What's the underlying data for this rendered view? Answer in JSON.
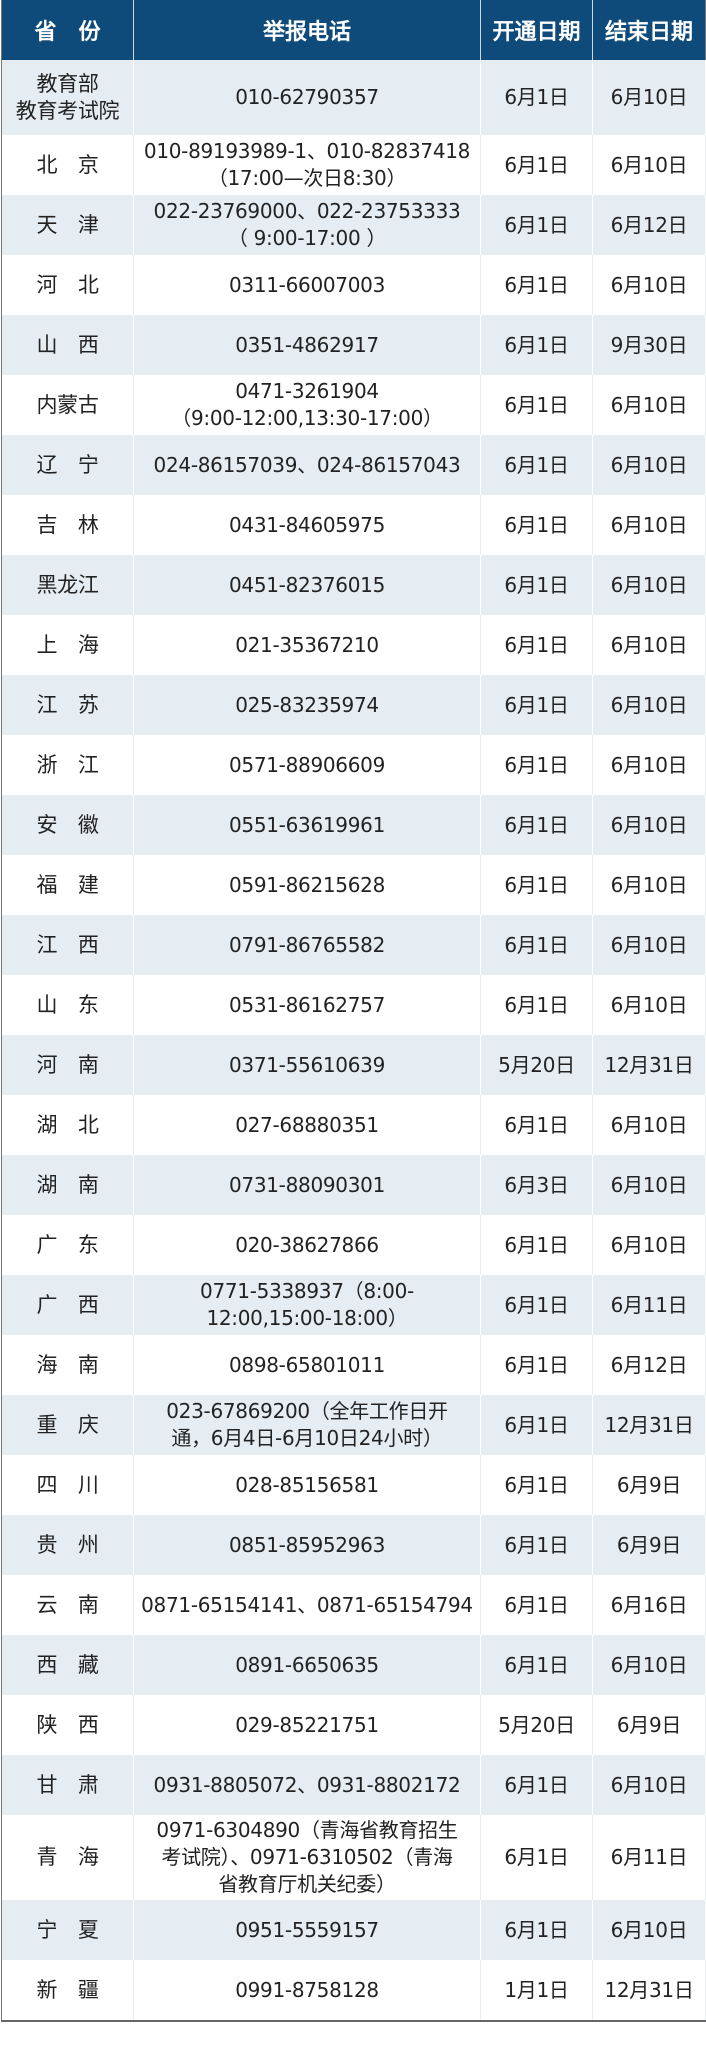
{
  "header": {
    "province": "省　份",
    "phone": "举报电话",
    "start": "开通日期",
    "end": "结束日期"
  },
  "colors": {
    "header_bg": "#0e4b7b",
    "row_shade": "#e5edf3"
  },
  "rows": [
    {
      "province": "教育部\n教育考试院",
      "phone": "010-62790357",
      "start": "6月1日",
      "end": "6月10日"
    },
    {
      "province": "北　京",
      "phone": "010-89193989-1、010-82837418\n（17:00—次日8:30）",
      "start": "6月1日",
      "end": "6月10日"
    },
    {
      "province": "天　津",
      "phone": "022-23769000、022-23753333\n（ 9:00-17:00 ）",
      "start": "6月1日",
      "end": "6月12日"
    },
    {
      "province": "河　北",
      "phone": "0311-66007003",
      "start": "6月1日",
      "end": "6月10日"
    },
    {
      "province": "山　西",
      "phone": "0351-4862917",
      "start": "6月1日",
      "end": "9月30日"
    },
    {
      "province": "内蒙古",
      "phone": "0471-3261904\n（9:00-12:00,13:30-17:00）",
      "start": "6月1日",
      "end": "6月10日"
    },
    {
      "province": "辽　宁",
      "phone": "024-86157039、024-86157043",
      "start": "6月1日",
      "end": "6月10日"
    },
    {
      "province": "吉　林",
      "phone": "0431-84605975",
      "start": "6月1日",
      "end": "6月10日"
    },
    {
      "province": "黑龙江",
      "phone": "0451-82376015",
      "start": "6月1日",
      "end": "6月10日"
    },
    {
      "province": "上　海",
      "phone": "021-35367210",
      "start": "6月1日",
      "end": "6月10日"
    },
    {
      "province": "江　苏",
      "phone": "025-83235974",
      "start": "6月1日",
      "end": "6月10日"
    },
    {
      "province": "浙　江",
      "phone": "0571-88906609",
      "start": "6月1日",
      "end": "6月10日"
    },
    {
      "province": "安　徽",
      "phone": "0551-63619961",
      "start": "6月1日",
      "end": "6月10日"
    },
    {
      "province": "福　建",
      "phone": "0591-86215628",
      "start": "6月1日",
      "end": "6月10日"
    },
    {
      "province": "江　西",
      "phone": "0791-86765582",
      "start": "6月1日",
      "end": "6月10日"
    },
    {
      "province": "山　东",
      "phone": "0531-86162757",
      "start": "6月1日",
      "end": "6月10日"
    },
    {
      "province": "河　南",
      "phone": "0371-55610639",
      "start": "5月20日",
      "end": "12月31日"
    },
    {
      "province": "湖　北",
      "phone": "027-68880351",
      "start": "6月1日",
      "end": "6月10日"
    },
    {
      "province": "湖　南",
      "phone": "0731-88090301",
      "start": "6月3日",
      "end": "6月10日"
    },
    {
      "province": "广　东",
      "phone": "020-38627866",
      "start": "6月1日",
      "end": "6月10日"
    },
    {
      "province": "广　西",
      "phone": "0771-5338937（8:00-\n12:00,15:00-18:00）",
      "start": "6月1日",
      "end": "6月11日"
    },
    {
      "province": "海　南",
      "phone": "0898-65801011",
      "start": "6月1日",
      "end": "6月12日"
    },
    {
      "province": "重　庆",
      "phone": "023-67869200（全年工作日开\n通，6月4日-6月10日24小时）",
      "start": "6月1日",
      "end": "12月31日"
    },
    {
      "province": "四　川",
      "phone": "028-85156581",
      "start": "6月1日",
      "end": "6月9日"
    },
    {
      "province": "贵　州",
      "phone": "0851-85952963",
      "start": "6月1日",
      "end": "6月9日"
    },
    {
      "province": "云　南",
      "phone": "0871-65154141、0871-65154794",
      "start": "6月1日",
      "end": "6月16日"
    },
    {
      "province": "西　藏",
      "phone": "0891-6650635",
      "start": "6月1日",
      "end": "6月10日"
    },
    {
      "province": "陕　西",
      "phone": "029-85221751",
      "start": "5月20日",
      "end": "6月9日"
    },
    {
      "province": "甘　肃",
      "phone": "0931-8805072、0931-8802172",
      "start": "6月1日",
      "end": "6月10日"
    },
    {
      "province": "青　海",
      "phone": "0971-6304890（青海省教育招生\n考试院）、0971-6310502（青海\n省教育厅机关纪委）",
      "start": "6月1日",
      "end": "6月11日"
    },
    {
      "province": "宁　夏",
      "phone": "0951-5559157",
      "start": "6月1日",
      "end": "6月10日"
    },
    {
      "province": "新　疆",
      "phone": "0991-8758128",
      "start": "1月1日",
      "end": "12月31日"
    }
  ]
}
